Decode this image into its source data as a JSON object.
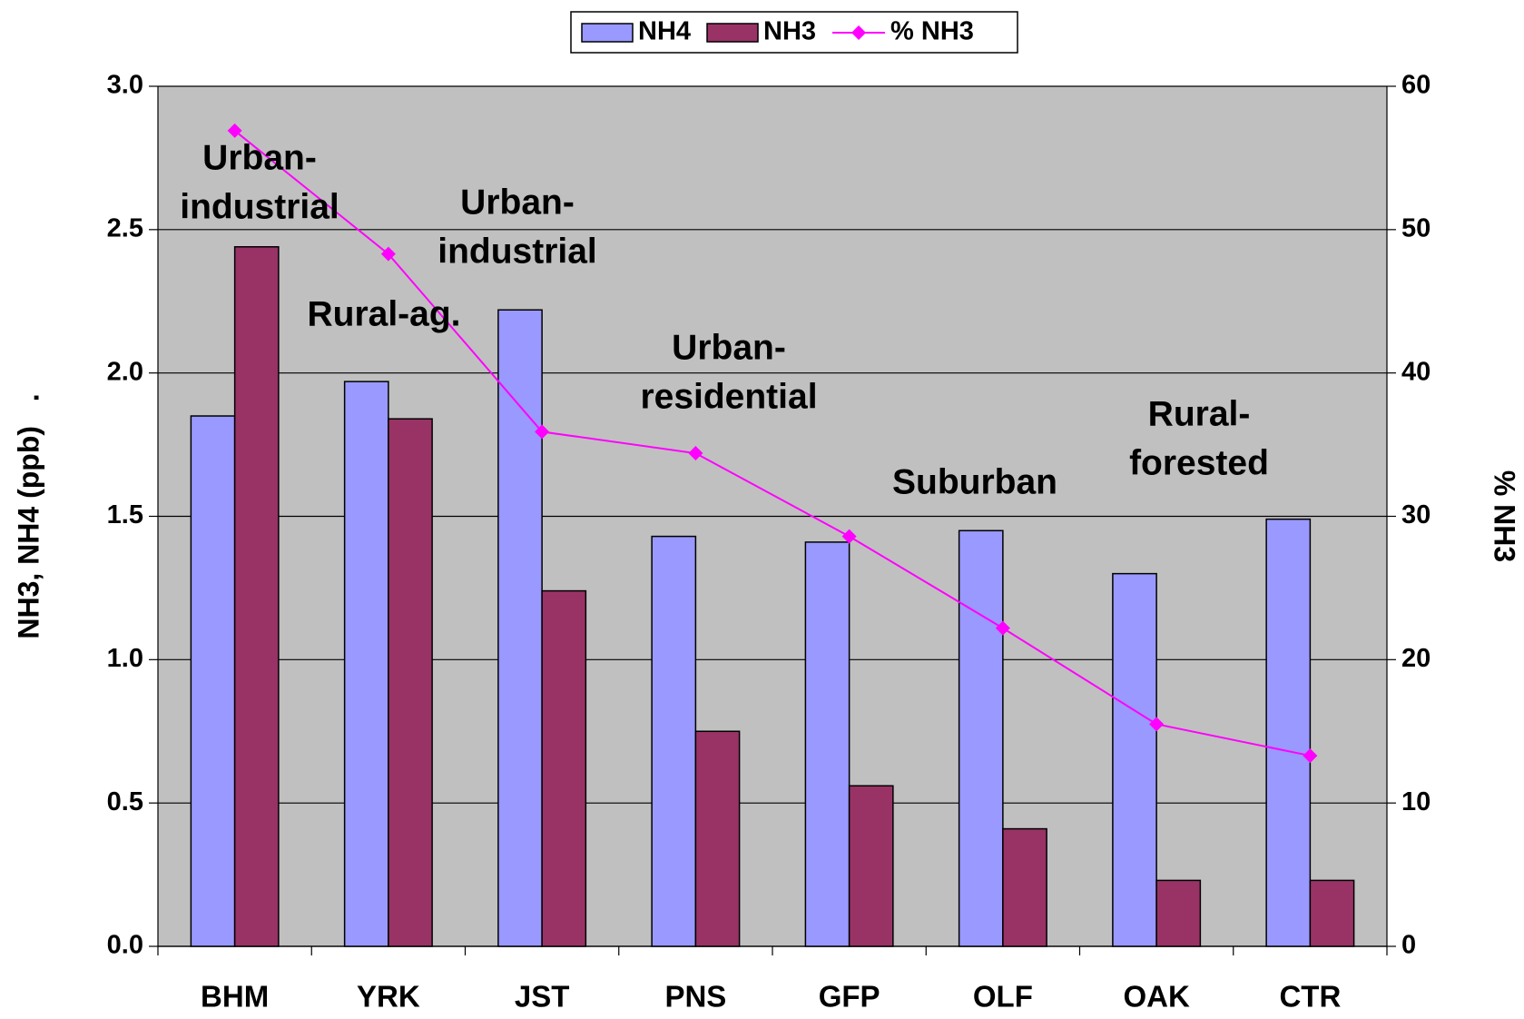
{
  "chart_data": {
    "type": "bar",
    "categories": [
      "BHM",
      "YRK",
      "JST",
      "PNS",
      "GFP",
      "OLF",
      "OAK",
      "CTR"
    ],
    "series": [
      {
        "name": "NH4",
        "color": "#9999ff",
        "values": [
          1.85,
          1.97,
          2.22,
          1.43,
          1.41,
          1.45,
          1.3,
          1.49
        ]
      },
      {
        "name": "NH3",
        "color": "#993366",
        "values": [
          2.44,
          1.84,
          1.24,
          0.75,
          0.56,
          0.41,
          0.23,
          0.23
        ]
      },
      {
        "name": "% NH3",
        "type": "line",
        "axis": "y2",
        "color": "#ff00ff",
        "values": [
          56.9,
          48.3,
          35.9,
          34.4,
          28.6,
          22.2,
          15.5,
          13.3
        ]
      }
    ],
    "ylabel": "NH3, NH4 (ppb)   .",
    "y2label": "% NH3",
    "ylim": [
      0,
      3
    ],
    "yticks": [
      {
        "value": 0,
        "label": "0.0"
      },
      0.5,
      {
        "value": 1,
        "label": "1.0"
      },
      1.5,
      {
        "value": 2,
        "label": "2.0"
      },
      2.5,
      {
        "value": 3,
        "label": "3.0"
      }
    ],
    "y2lim": [
      0,
      60
    ],
    "y2ticks": [
      0,
      10,
      20,
      30,
      40,
      50,
      60
    ],
    "grid": true,
    "legend": "top",
    "annotations": [
      {
        "lines": [
          "Urban-",
          "industrial"
        ]
      },
      {
        "lines": [
          "Rural-ag."
        ]
      },
      {
        "lines": [
          "Urban-",
          "industrial"
        ]
      },
      {
        "lines": [
          "Urban-",
          "residential"
        ]
      },
      {
        "lines": [
          "Suburban"
        ]
      },
      {
        "lines": [
          "Rural-",
          "forested"
        ]
      }
    ]
  }
}
